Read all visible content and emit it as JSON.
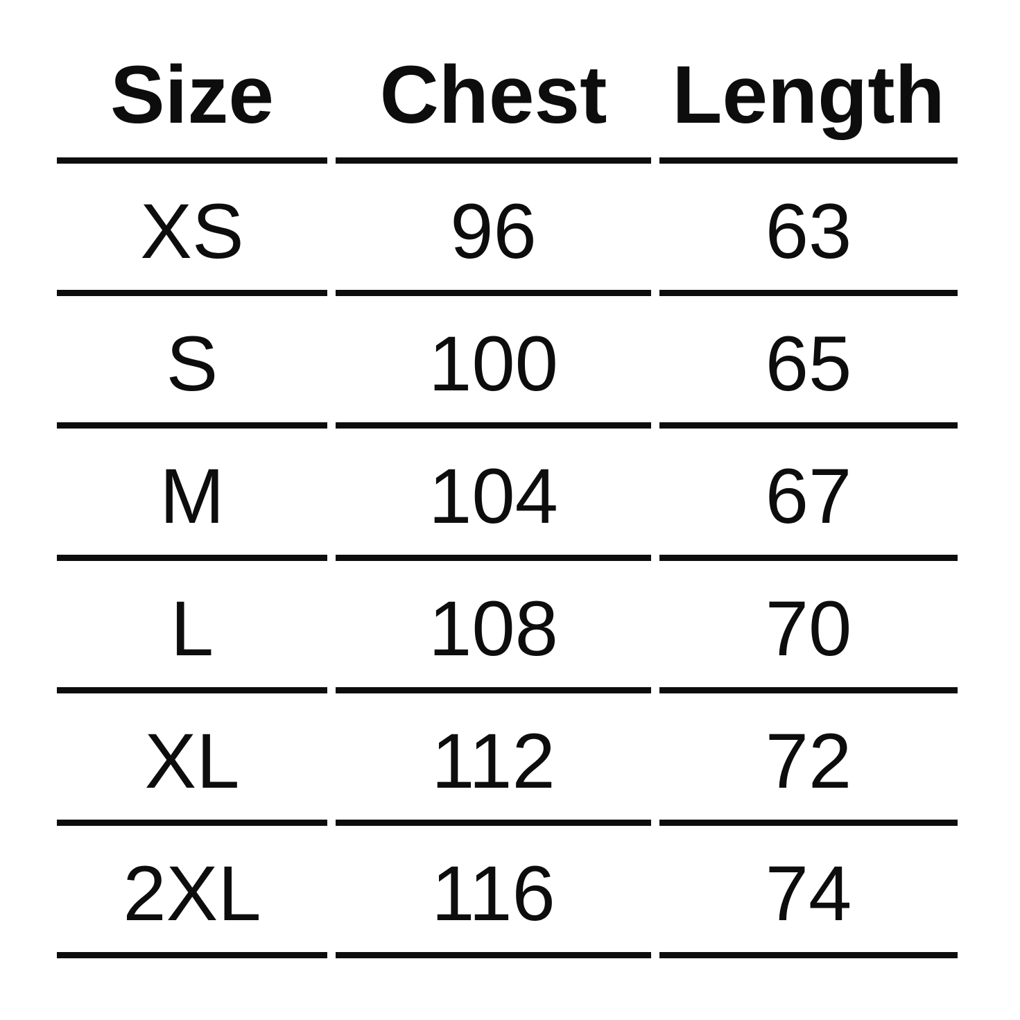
{
  "colors": {
    "background": "#ffffff",
    "text": "#0d0d0d",
    "line": "#0d0d0d"
  },
  "chart_data": {
    "type": "table",
    "columns": [
      "Size",
      "Chest",
      "Length"
    ],
    "rows": [
      [
        "XS",
        "96",
        "63"
      ],
      [
        "S",
        "100",
        "65"
      ],
      [
        "M",
        "104",
        "67"
      ],
      [
        "L",
        "108",
        "70"
      ],
      [
        "XL",
        "112",
        "72"
      ],
      [
        "2XL",
        "116",
        "74"
      ]
    ]
  }
}
